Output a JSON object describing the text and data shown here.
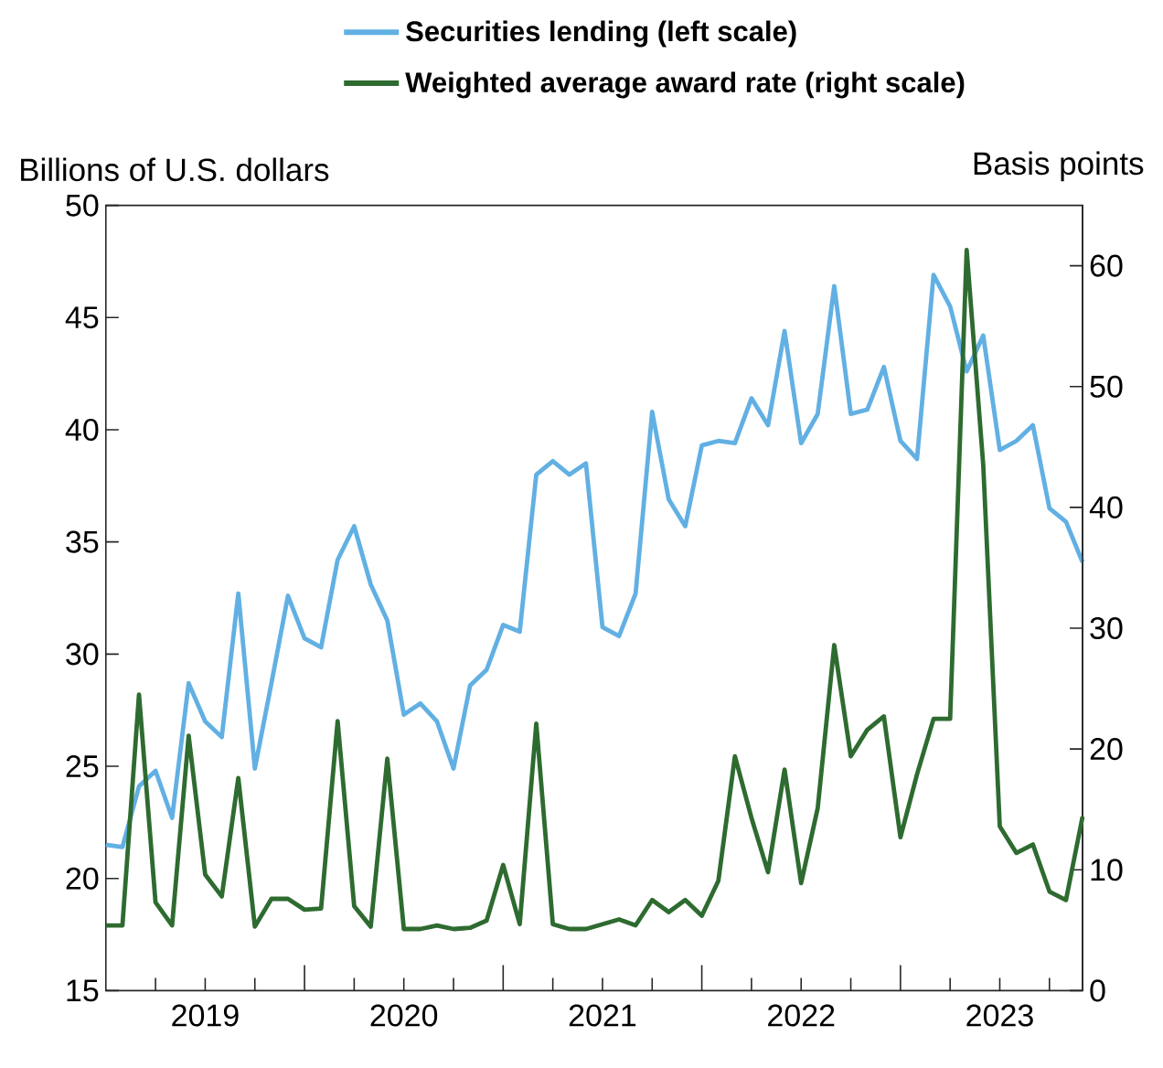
{
  "chart_data": {
    "type": "line",
    "ylabel": "Billions of U.S. dollars",
    "y2label": "Basis points",
    "legend": "top",
    "x": [
      "2019-01",
      "2019-02",
      "2019-03",
      "2019-04",
      "2019-05",
      "2019-06",
      "2019-07",
      "2019-08",
      "2019-09",
      "2019-10",
      "2019-11",
      "2019-12",
      "2020-01",
      "2020-02",
      "2020-03",
      "2020-04",
      "2020-05",
      "2020-06",
      "2020-07",
      "2020-08",
      "2020-09",
      "2020-10",
      "2020-11",
      "2020-12",
      "2021-01",
      "2021-02",
      "2021-03",
      "2021-04",
      "2021-05",
      "2021-06",
      "2021-07",
      "2021-08",
      "2021-09",
      "2021-10",
      "2021-11",
      "2021-12",
      "2022-01",
      "2022-02",
      "2022-03",
      "2022-04",
      "2022-05",
      "2022-06",
      "2022-07",
      "2022-08",
      "2022-09",
      "2022-10",
      "2022-11",
      "2022-12",
      "2023-01",
      "2023-02",
      "2023-03",
      "2023-04",
      "2023-05",
      "2023-06",
      "2023-07",
      "2023-08",
      "2023-09",
      "2023-10",
      "2023-11",
      "2023-12"
    ],
    "xlim": [
      "2019-01",
      "2023-12"
    ],
    "xticks": [
      {
        "value": "2019-04",
        "label": null
      },
      {
        "value": "2019-07",
        "label": "2019"
      },
      {
        "value": "2019-10",
        "label": null
      },
      {
        "value": "2020-01",
        "label": null
      },
      {
        "value": "2020-04",
        "label": null
      },
      {
        "value": "2020-07",
        "label": "2020"
      },
      {
        "value": "2020-10",
        "label": null
      },
      {
        "value": "2021-01",
        "label": null
      },
      {
        "value": "2021-04",
        "label": null
      },
      {
        "value": "2021-07",
        "label": "2021"
      },
      {
        "value": "2021-10",
        "label": null
      },
      {
        "value": "2022-01",
        "label": null
      },
      {
        "value": "2022-04",
        "label": null
      },
      {
        "value": "2022-07",
        "label": "2022"
      },
      {
        "value": "2022-10",
        "label": null
      },
      {
        "value": "2023-01",
        "label": null
      },
      {
        "value": "2023-04",
        "label": null
      },
      {
        "value": "2023-07",
        "label": "2023"
      },
      {
        "value": "2023-10",
        "label": null
      }
    ],
    "ylim": [
      15,
      50
    ],
    "yticks": [
      15,
      20,
      25,
      30,
      35,
      40,
      45,
      50
    ],
    "y2lim": [
      0,
      65
    ],
    "y2ticks": [
      0,
      10,
      20,
      30,
      40,
      50,
      60
    ],
    "series": [
      {
        "name": "Securities lending (left scale)",
        "color": "#62b0e3",
        "axis": "y",
        "values": [
          21.5,
          21.4,
          24.1,
          24.8,
          22.7,
          28.7,
          27.0,
          26.3,
          32.7,
          24.9,
          28.7,
          32.6,
          30.7,
          30.3,
          34.2,
          35.7,
          33.1,
          31.5,
          27.3,
          27.8,
          27.0,
          24.9,
          28.6,
          29.3,
          31.3,
          31.0,
          38.0,
          38.6,
          38.0,
          38.5,
          31.2,
          30.8,
          32.7,
          40.8,
          36.9,
          35.7,
          39.3,
          39.5,
          39.4,
          41.4,
          40.2,
          44.4,
          39.4,
          40.7,
          46.4,
          40.7,
          40.9,
          42.8,
          39.5,
          38.7,
          46.9,
          45.5,
          42.6,
          44.2,
          39.1,
          39.5,
          40.2,
          36.5,
          35.9,
          34.1
        ]
      },
      {
        "name": "Weighted average award rate (right scale)",
        "color": "#2e6b30",
        "axis": "y2",
        "values": [
          5.4,
          5.4,
          24.5,
          7.3,
          5.4,
          21.1,
          9.6,
          7.8,
          17.6,
          5.3,
          7.6,
          7.6,
          6.7,
          6.8,
          22.3,
          7.0,
          5.3,
          19.2,
          5.1,
          5.1,
          5.4,
          5.1,
          5.2,
          5.8,
          10.4,
          5.5,
          22.1,
          5.5,
          5.1,
          5.1,
          5.5,
          5.9,
          5.4,
          7.5,
          6.5,
          7.5,
          6.2,
          9.1,
          19.4,
          14.3,
          9.8,
          18.3,
          8.9,
          15.1,
          28.6,
          19.4,
          21.6,
          22.7,
          12.7,
          17.9,
          22.5,
          22.5,
          61.3,
          43.5,
          13.6,
          11.4,
          12.1,
          8.2,
          7.5,
          14.4
        ]
      }
    ]
  }
}
